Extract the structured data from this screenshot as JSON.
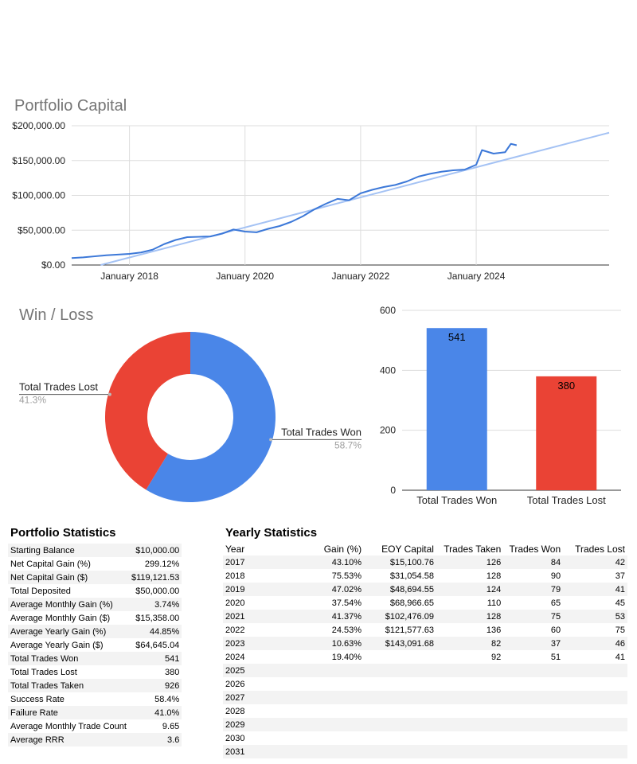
{
  "chart_data": [
    {
      "type": "line",
      "title": "Portfolio Capital",
      "y_ticks": [
        "$200,000.00",
        "$150,000.00",
        "$100,000.00",
        "$50,000.00",
        "$0.00"
      ],
      "ylim": [
        0,
        200000
      ],
      "x_ticks": [
        "January 2018",
        "January 2020",
        "January 2022",
        "January 2024"
      ],
      "x_tick_years": [
        2018,
        2020,
        2022,
        2024
      ],
      "xlim": [
        2017.0,
        2026.3
      ],
      "series": [
        {
          "name": "Portfolio Capital",
          "x": [
            2017.0,
            2017.2,
            2017.4,
            2017.6,
            2017.8,
            2018.0,
            2018.2,
            2018.4,
            2018.6,
            2018.8,
            2019.0,
            2019.2,
            2019.4,
            2019.6,
            2019.8,
            2020.0,
            2020.2,
            2020.4,
            2020.6,
            2020.8,
            2021.0,
            2021.2,
            2021.4,
            2021.6,
            2021.8,
            2022.0,
            2022.2,
            2022.4,
            2022.6,
            2022.8,
            2023.0,
            2023.2,
            2023.4,
            2023.6,
            2023.8,
            2024.0,
            2024.1,
            2024.3,
            2024.5,
            2024.6,
            2024.7
          ],
          "values": [
            10000,
            11000,
            12500,
            14000,
            15000,
            16000,
            18000,
            22000,
            30000,
            36000,
            40000,
            40500,
            41000,
            45000,
            51000,
            48000,
            47000,
            52000,
            56000,
            62000,
            70000,
            80000,
            88000,
            95000,
            93000,
            103000,
            108000,
            112000,
            115000,
            120000,
            127000,
            131000,
            134000,
            136000,
            137000,
            144000,
            165000,
            160000,
            162000,
            174000,
            172000
          ]
        },
        {
          "name": "Trendline",
          "x": [
            2017.5,
            2026.3
          ],
          "values": [
            0,
            190000
          ]
        }
      ]
    },
    {
      "type": "pie",
      "title": "Win / Loss",
      "slices": [
        {
          "label": "Total Trades Won",
          "value": 58.7,
          "pct_label": "58.7%",
          "color": "#4a86e8"
        },
        {
          "label": "Total Trades Lost",
          "value": 41.3,
          "pct_label": "41.3%",
          "color": "#ea4335"
        }
      ]
    },
    {
      "type": "bar",
      "categories": [
        "Total Trades Won",
        "Total Trades Lost"
      ],
      "values": [
        541,
        380
      ],
      "colors": [
        "#4a86e8",
        "#ea4335"
      ],
      "y_ticks": [
        "600",
        "400",
        "200",
        "0"
      ],
      "ylim": [
        0,
        600
      ]
    }
  ],
  "portfolio_stats": {
    "title": "Portfolio Statistics",
    "rows": [
      [
        "Starting Balance",
        "$10,000.00"
      ],
      [
        "Net Capital Gain (%)",
        "299.12%"
      ],
      [
        "Net Capital Gain ($)",
        "$119,121.53"
      ],
      [
        "Total Deposited",
        "$50,000.00"
      ],
      [
        "Average Monthly Gain (%)",
        "3.74%"
      ],
      [
        "Average Monthly Gain ($)",
        "$15,358.00"
      ],
      [
        "Average Yearly Gain (%)",
        "44.85%"
      ],
      [
        "Average Yearly Gain ($)",
        "$64,645.04"
      ],
      [
        "Total Trades Won",
        "541"
      ],
      [
        "Total Trades Lost",
        "380"
      ],
      [
        "Total Trades Taken",
        "926"
      ],
      [
        "Success Rate",
        "58.4%"
      ],
      [
        "Failure Rate",
        "41.0%"
      ],
      [
        "Average Monthly Trade Count",
        "9.65"
      ],
      [
        "Average RRR",
        "3.6"
      ]
    ]
  },
  "yearly_stats": {
    "title": "Yearly Statistics",
    "headers": [
      "Year",
      "Gain (%)",
      "EOY Capital",
      "Trades Taken",
      "Trades Won",
      "Trades Lost"
    ],
    "rows": [
      [
        "2017",
        "43.10%",
        "$15,100.76",
        "126",
        "84",
        "42"
      ],
      [
        "2018",
        "75.53%",
        "$31,054.58",
        "128",
        "90",
        "37"
      ],
      [
        "2019",
        "47.02%",
        "$48,694.55",
        "124",
        "79",
        "41"
      ],
      [
        "2020",
        "37.54%",
        "$68,966.65",
        "110",
        "65",
        "45"
      ],
      [
        "2021",
        "41.37%",
        "$102,476.09",
        "128",
        "75",
        "53"
      ],
      [
        "2022",
        "24.53%",
        "$121,577.63",
        "136",
        "60",
        "75"
      ],
      [
        "2023",
        "10.63%",
        "$143,091.68",
        "82",
        "37",
        "46"
      ],
      [
        "2024",
        "19.40%",
        "",
        "92",
        "51",
        "41"
      ],
      [
        "2025",
        "",
        "",
        "",
        "",
        ""
      ],
      [
        "2026",
        "",
        "",
        "",
        "",
        ""
      ],
      [
        "2027",
        "",
        "",
        "",
        "",
        ""
      ],
      [
        "2028",
        "",
        "",
        "",
        "",
        ""
      ],
      [
        "2029",
        "",
        "",
        "",
        "",
        ""
      ],
      [
        "2030",
        "",
        "",
        "",
        "",
        ""
      ],
      [
        "2031",
        "",
        "",
        "",
        "",
        ""
      ]
    ]
  }
}
